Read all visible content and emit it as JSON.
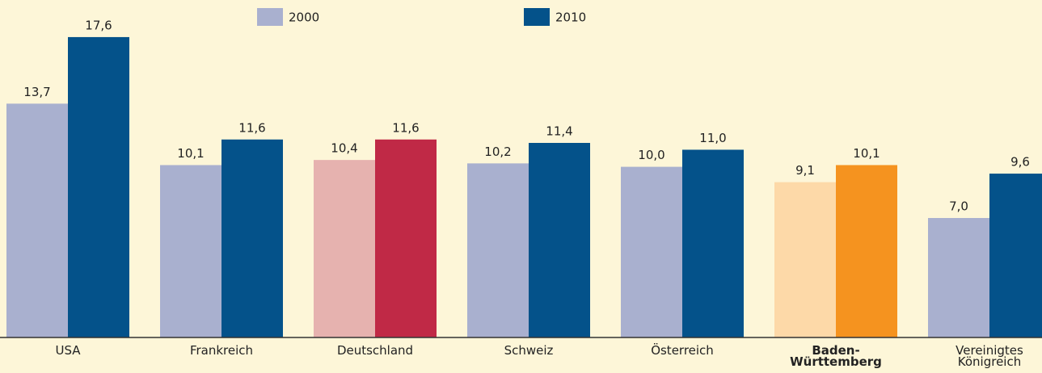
{
  "chart_data": {
    "type": "bar",
    "categories": [
      "USA",
      "Frankreich",
      "Deutschland",
      "Schweiz",
      "Österreich",
      "Baden-\nWürttemberg",
      "Vereinigtes\nKönigreich"
    ],
    "series": [
      {
        "name": "2000",
        "color": "#a9b0cf",
        "colors": [
          "#a9b0cf",
          "#a9b0cf",
          "#e6b2af",
          "#a9b0cf",
          "#a9b0cf",
          "#fdd9a8",
          "#a9b0cf"
        ],
        "values": [
          13.7,
          10.1,
          10.4,
          10.2,
          10.0,
          9.1,
          7.0
        ],
        "value_labels": [
          "13,7",
          "10,1",
          "10,4",
          "10,2",
          "10,0",
          "9,1",
          "7,0"
        ]
      },
      {
        "name": "2010",
        "color": "#04528a",
        "colors": [
          "#04528a",
          "#04528a",
          "#c02946",
          "#04528a",
          "#04528a",
          "#f5931f",
          "#04528a"
        ],
        "values": [
          17.6,
          11.6,
          11.6,
          11.4,
          11.0,
          10.1,
          9.6
        ],
        "value_labels": [
          "17,6",
          "11,6",
          "11,6",
          "11,4",
          "11,0",
          "10,1",
          "9,6"
        ]
      }
    ]
  }
}
